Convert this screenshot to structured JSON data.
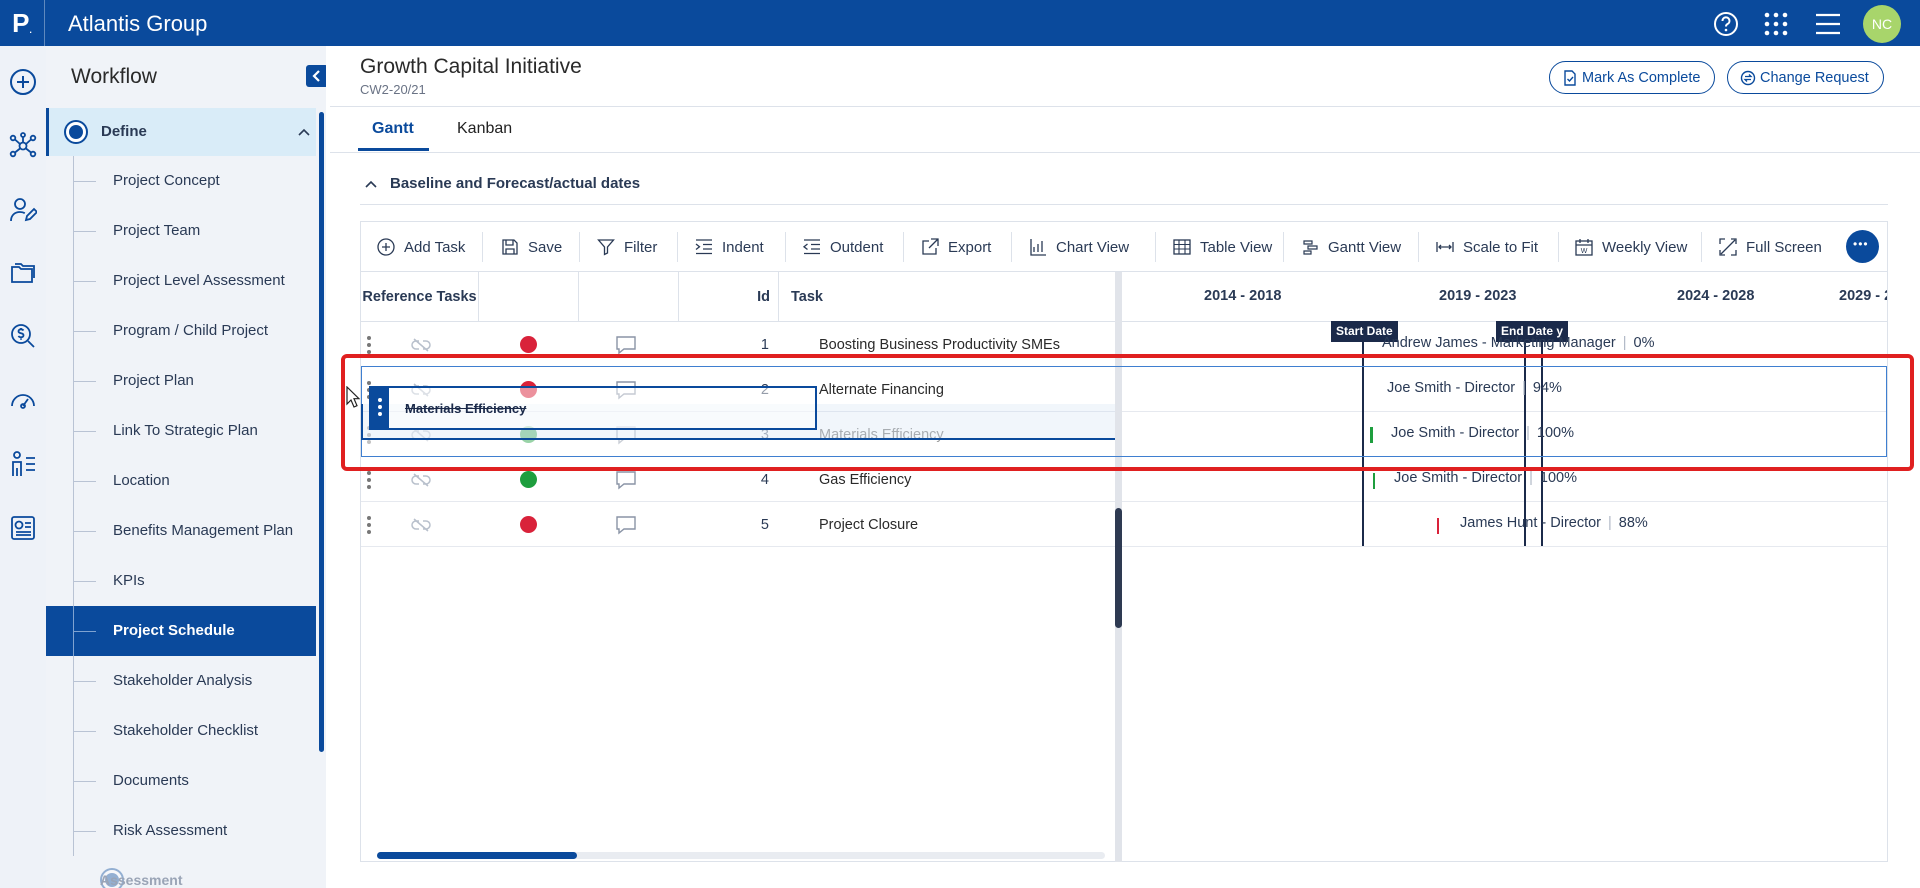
{
  "app": {
    "logo": "P",
    "logo_dot": ".",
    "title": "Atlantis Group",
    "user_initials": "NC"
  },
  "sidebar": {
    "title": "Workflow",
    "section": "Define",
    "items": [
      "Project Concept",
      "Project Team",
      "Project Level Assessment",
      "Program / Child Project",
      "Project Plan",
      "Link To Strategic Plan",
      "Location",
      "Benefits Management Plan",
      "KPIs",
      "Project Schedule",
      "Stakeholder Analysis",
      "Stakeholder Checklist",
      "Documents",
      "Risk Assessment"
    ],
    "active_item": "Project Schedule",
    "next_section": "Assessment"
  },
  "header": {
    "title": "Growth Capital Initiative",
    "subtitle": "CW2-20/21",
    "mark_complete": "Mark As Complete",
    "change_request": "Change Request"
  },
  "tabs": {
    "gantt": "Gantt",
    "kanban": "Kanban"
  },
  "accordion": {
    "title": "Baseline and Forecast/actual dates"
  },
  "toolbar": {
    "add_task": "Add Task",
    "save": "Save",
    "filter": "Filter",
    "indent": "Indent",
    "outdent": "Outdent",
    "export": "Export",
    "chart_view": "Chart View",
    "table_view": "Table View",
    "gantt_view": "Gantt View",
    "scale_to_fit": "Scale to Fit",
    "weekly_view": "Weekly View",
    "full_screen": "Full Screen"
  },
  "columns": {
    "reference_tasks": "Reference Tasks",
    "id": "Id",
    "task": "Task"
  },
  "timeline": {
    "years": [
      "2014 - 2018",
      "2019 - 2023",
      "2024 - 2028",
      "2029 - 2"
    ],
    "start_date": "Start Date",
    "end_date": "End Date",
    "end_suffix": "y"
  },
  "rows": [
    {
      "id": "1",
      "task": "Boosting Business Productivity SMEs",
      "status": "#d9223a",
      "owner": "Andrew James - Marketing Manager",
      "progress": "0%"
    },
    {
      "id": "2",
      "task": "Alternate Financing",
      "status": "#d9223a",
      "owner": "Joe Smith - Director",
      "progress": "94%"
    },
    {
      "id": "3",
      "task": "Materials Efficiency",
      "status": "#1e9e3e",
      "owner": "Joe Smith - Director",
      "progress": "100%"
    },
    {
      "id": "4",
      "task": "Gas Efficiency",
      "status": "#1e9e3e",
      "owner": "Joe Smith - Director",
      "progress": "100%"
    },
    {
      "id": "5",
      "task": "Project Closure",
      "status": "#d9223a",
      "owner": "James Hunt - Director",
      "progress": "88%"
    }
  ],
  "drag": {
    "ghost_label": "Materials Efficiency"
  },
  "colors": {
    "brand": "#0a4a9c",
    "highlight": "#e02020"
  }
}
